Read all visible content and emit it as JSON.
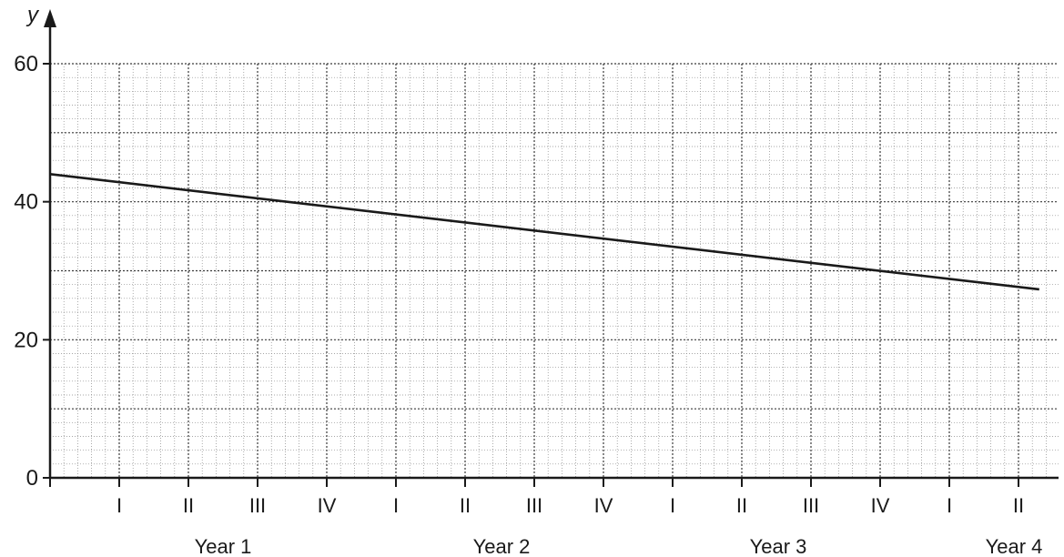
{
  "chart_data": {
    "type": "line",
    "title": "",
    "ylabel": "y",
    "xlabel": "",
    "ylim": [
      0,
      60
    ],
    "y_ticks": [
      "0",
      "20",
      "40",
      "60"
    ],
    "x_tick_labels": [
      "I",
      "II",
      "III",
      "IV",
      "I",
      "II",
      "III",
      "IV",
      "I",
      "II",
      "III",
      "IV",
      "I",
      "II"
    ],
    "year_labels": [
      "Year 1",
      "Year 2",
      "Year 3",
      "Year 4"
    ],
    "grid": true,
    "series": [
      {
        "x": [
          0,
          14.3
        ],
        "values": [
          44,
          27.3
        ]
      }
    ]
  },
  "colors": {
    "line": "#1a1a1a",
    "grid_minor": "#8a8a8a",
    "grid_major": "#3a3a3a"
  }
}
